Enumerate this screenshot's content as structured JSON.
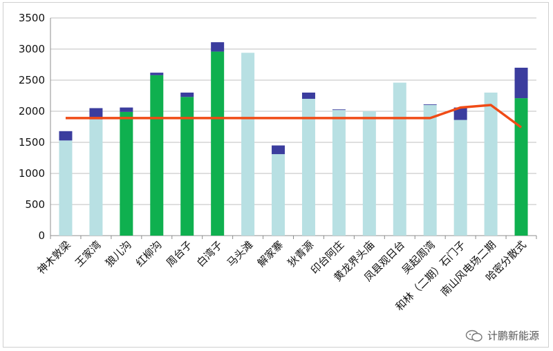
{
  "chart_data": {
    "type": "bar",
    "stacked": true,
    "ylim": [
      0,
      3500
    ],
    "yticks": [
      0,
      500,
      1000,
      1500,
      2000,
      2500,
      3000,
      3500
    ],
    "categories": [
      "神木敦梁",
      "王家湾",
      "狼儿沟",
      "红柳沟",
      "周台子",
      "白湾子",
      "马头滩",
      "解家寨",
      "狄青源",
      "印台阿庄",
      "黄龙界头庙",
      "凤县观日台",
      "吴起周湾",
      "和林（二期）石门子",
      "南山风电场二期",
      "哈密分散式"
    ],
    "bar_colors": [
      "#b8e0e3",
      "#b8e0e3",
      "#0fb04f",
      "#0fb04f",
      "#0fb04f",
      "#0fb04f",
      "#b8e0e3",
      "#b8e0e3",
      "#b8e0e3",
      "#b8e0e3",
      "#b8e0e3",
      "#b8e0e3",
      "#b8e0e3",
      "#b8e0e3",
      "#b8e0e3",
      "#0fb04f"
    ],
    "series": [
      {
        "values": [
          1530,
          1870,
          1990,
          2580,
          2230,
          2960,
          2940,
          1310,
          2200,
          2020,
          2000,
          2460,
          2100,
          1860,
          2300,
          2210
        ]
      },
      {
        "values": [
          150,
          180,
          70,
          40,
          70,
          150,
          0,
          140,
          100,
          10,
          0,
          0,
          10,
          200,
          0,
          490
        ],
        "color": "#3b3d9e"
      },
      {
        "type": "line",
        "values": [
          1890,
          1890,
          1890,
          1890,
          1890,
          1890,
          1890,
          1890,
          1890,
          1890,
          1890,
          1890,
          1890,
          2060,
          2100,
          1740
        ],
        "color": "#f04b16"
      }
    ],
    "grid": true
  },
  "watermark": {
    "text": "计鹏新能源",
    "icon": "wechat-icon"
  }
}
